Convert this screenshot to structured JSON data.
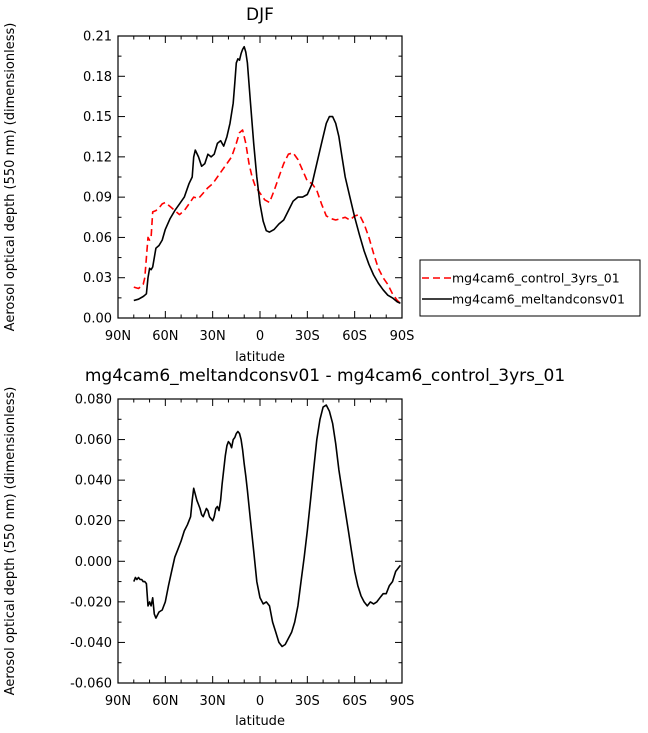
{
  "chart_data": [
    {
      "type": "line",
      "title": "DJF",
      "xlabel": "latitude",
      "ylabel": "Aerosol optical depth (550 nm) (dimensionless)",
      "xlim": [
        90,
        -90
      ],
      "ylim": [
        0,
        0.21
      ],
      "x_ticks": [
        90,
        60,
        30,
        0,
        -30,
        -60,
        -90
      ],
      "x_tick_labels": [
        "90N",
        "60N",
        "30N",
        "0",
        "30S",
        "60S",
        "90S"
      ],
      "y_ticks": [
        0,
        0.03,
        0.06,
        0.09,
        0.12,
        0.15,
        0.18,
        0.21
      ],
      "y_tick_labels": [
        "0.00",
        "0.03",
        "0.06",
        "0.09",
        "0.12",
        "0.15",
        "0.18",
        "0.21"
      ],
      "legend_position": "right",
      "series": [
        {
          "name": "mg4cam6_control_3yrs_01",
          "color": "#ff0000",
          "dash": "dashed",
          "x": [
            80,
            77,
            74,
            73,
            72,
            71,
            70,
            69,
            68,
            66,
            64,
            62,
            60,
            57,
            54,
            51,
            48,
            45,
            42,
            39,
            36,
            33,
            30,
            27,
            24,
            21,
            18,
            15,
            13,
            11,
            9,
            7,
            5,
            3,
            0,
            -3,
            -6,
            -9,
            -12,
            -15,
            -18,
            -21,
            -24,
            -27,
            -30,
            -33,
            -36,
            -39,
            -42,
            -45,
            -48,
            -51,
            -54,
            -57,
            -60,
            -63,
            -66,
            -69,
            -72,
            -75,
            -78,
            -81,
            -84,
            -87,
            -89
          ],
          "y": [
            0.023,
            0.022,
            0.025,
            0.03,
            0.045,
            0.06,
            0.058,
            0.06,
            0.079,
            0.08,
            0.082,
            0.085,
            0.086,
            0.083,
            0.08,
            0.077,
            0.08,
            0.085,
            0.09,
            0.089,
            0.093,
            0.097,
            0.1,
            0.105,
            0.11,
            0.115,
            0.12,
            0.13,
            0.138,
            0.14,
            0.13,
            0.115,
            0.105,
            0.098,
            0.093,
            0.088,
            0.086,
            0.095,
            0.105,
            0.115,
            0.122,
            0.123,
            0.118,
            0.11,
            0.102,
            0.1,
            0.095,
            0.085,
            0.076,
            0.074,
            0.073,
            0.074,
            0.075,
            0.073,
            0.076,
            0.077,
            0.07,
            0.06,
            0.048,
            0.037,
            0.03,
            0.025,
            0.018,
            0.013,
            0.011
          ]
        },
        {
          "name": "mg4cam6_meltandconsv01",
          "color": "#000000",
          "dash": "solid",
          "x": [
            80,
            77,
            74,
            73,
            72,
            71,
            70,
            69,
            68,
            66,
            64,
            62,
            60,
            57,
            54,
            51,
            48,
            45,
            43,
            42,
            41,
            39,
            37,
            35,
            33,
            31,
            29,
            27,
            25,
            23,
            21,
            19,
            17,
            16,
            15,
            14,
            13,
            12,
            11,
            10,
            9,
            8,
            6,
            4,
            2,
            0,
            -2,
            -4,
            -6,
            -9,
            -12,
            -15,
            -18,
            -21,
            -24,
            -27,
            -30,
            -33,
            -36,
            -39,
            -42,
            -44,
            -46,
            -48,
            -50,
            -52,
            -54,
            -57,
            -60,
            -63,
            -66,
            -69,
            -72,
            -75,
            -78,
            -81,
            -84,
            -87,
            -89
          ],
          "y": [
            0.013,
            0.014,
            0.016,
            0.017,
            0.018,
            0.03,
            0.037,
            0.036,
            0.038,
            0.052,
            0.054,
            0.058,
            0.066,
            0.074,
            0.08,
            0.085,
            0.09,
            0.1,
            0.105,
            0.12,
            0.125,
            0.12,
            0.113,
            0.115,
            0.122,
            0.12,
            0.122,
            0.13,
            0.132,
            0.128,
            0.135,
            0.145,
            0.16,
            0.175,
            0.19,
            0.193,
            0.192,
            0.197,
            0.2,
            0.202,
            0.198,
            0.19,
            0.16,
            0.13,
            0.105,
            0.085,
            0.072,
            0.065,
            0.064,
            0.066,
            0.07,
            0.073,
            0.08,
            0.087,
            0.09,
            0.09,
            0.092,
            0.1,
            0.115,
            0.13,
            0.145,
            0.15,
            0.15,
            0.145,
            0.135,
            0.12,
            0.105,
            0.09,
            0.075,
            0.062,
            0.05,
            0.04,
            0.032,
            0.026,
            0.021,
            0.017,
            0.015,
            0.012,
            0.011
          ]
        }
      ]
    },
    {
      "type": "line",
      "title": "mg4cam6_meltandconsv01 - mg4cam6_control_3yrs_01",
      "xlabel": "latitude",
      "ylabel": "Aerosol optical depth (550 nm) (dimensionless)",
      "xlim": [
        90,
        -90
      ],
      "ylim": [
        -0.06,
        0.08
      ],
      "x_ticks": [
        90,
        60,
        30,
        0,
        -30,
        -60,
        -90
      ],
      "x_tick_labels": [
        "90N",
        "60N",
        "30N",
        "0",
        "30S",
        "60S",
        "90S"
      ],
      "y_ticks": [
        -0.06,
        -0.04,
        -0.02,
        0,
        0.02,
        0.04,
        0.06,
        0.08
      ],
      "y_tick_labels": [
        "-0.060",
        "-0.040",
        "-0.020",
        "0.000",
        "0.020",
        "0.040",
        "0.060",
        "0.080"
      ],
      "series": [
        {
          "color": "#000000",
          "dash": "solid",
          "x": [
            80,
            79,
            78,
            77,
            76,
            75,
            74,
            73,
            72,
            71,
            70,
            69,
            68,
            67,
            66,
            64,
            62,
            60,
            58,
            56,
            54,
            52,
            50,
            48,
            46,
            44,
            43,
            42,
            41,
            40,
            39,
            38,
            37,
            36,
            35,
            34,
            33,
            32,
            31,
            30,
            29,
            28,
            27,
            26,
            25,
            24,
            23,
            22,
            21,
            20,
            19,
            18,
            17,
            16,
            15,
            14,
            13,
            12,
            11,
            10,
            9,
            8,
            6,
            4,
            2,
            0,
            -2,
            -4,
            -6,
            -8,
            -10,
            -12,
            -14,
            -16,
            -18,
            -20,
            -22,
            -24,
            -26,
            -28,
            -30,
            -32,
            -34,
            -36,
            -38,
            -40,
            -42,
            -44,
            -46,
            -48,
            -50,
            -52,
            -54,
            -56,
            -58,
            -60,
            -62,
            -64,
            -66,
            -68,
            -70,
            -72,
            -74,
            -76,
            -78,
            -80,
            -82,
            -84,
            -86,
            -88,
            -89
          ],
          "y": [
            -0.01,
            -0.008,
            -0.009,
            -0.008,
            -0.009,
            -0.009,
            -0.01,
            -0.01,
            -0.011,
            -0.022,
            -0.02,
            -0.022,
            -0.018,
            -0.026,
            -0.028,
            -0.025,
            -0.024,
            -0.02,
            -0.012,
            -0.005,
            0.002,
            0.006,
            0.01,
            0.015,
            0.018,
            0.022,
            0.03,
            0.036,
            0.033,
            0.03,
            0.028,
            0.026,
            0.023,
            0.022,
            0.024,
            0.026,
            0.025,
            0.022,
            0.021,
            0.02,
            0.022,
            0.026,
            0.027,
            0.025,
            0.03,
            0.038,
            0.045,
            0.052,
            0.057,
            0.059,
            0.058,
            0.056,
            0.06,
            0.061,
            0.063,
            0.064,
            0.063,
            0.06,
            0.055,
            0.048,
            0.042,
            0.035,
            0.02,
            0.005,
            -0.01,
            -0.018,
            -0.021,
            -0.02,
            -0.022,
            -0.03,
            -0.035,
            -0.04,
            -0.042,
            -0.041,
            -0.038,
            -0.035,
            -0.03,
            -0.022,
            -0.01,
            0.002,
            0.015,
            0.03,
            0.045,
            0.06,
            0.07,
            0.076,
            0.077,
            0.074,
            0.068,
            0.058,
            0.045,
            0.035,
            0.025,
            0.015,
            0.005,
            -0.005,
            -0.012,
            -0.017,
            -0.02,
            -0.022,
            -0.02,
            -0.021,
            -0.02,
            -0.018,
            -0.016,
            -0.016,
            -0.012,
            -0.01,
            -0.005,
            -0.003,
            -0.002
          ]
        }
      ]
    }
  ]
}
